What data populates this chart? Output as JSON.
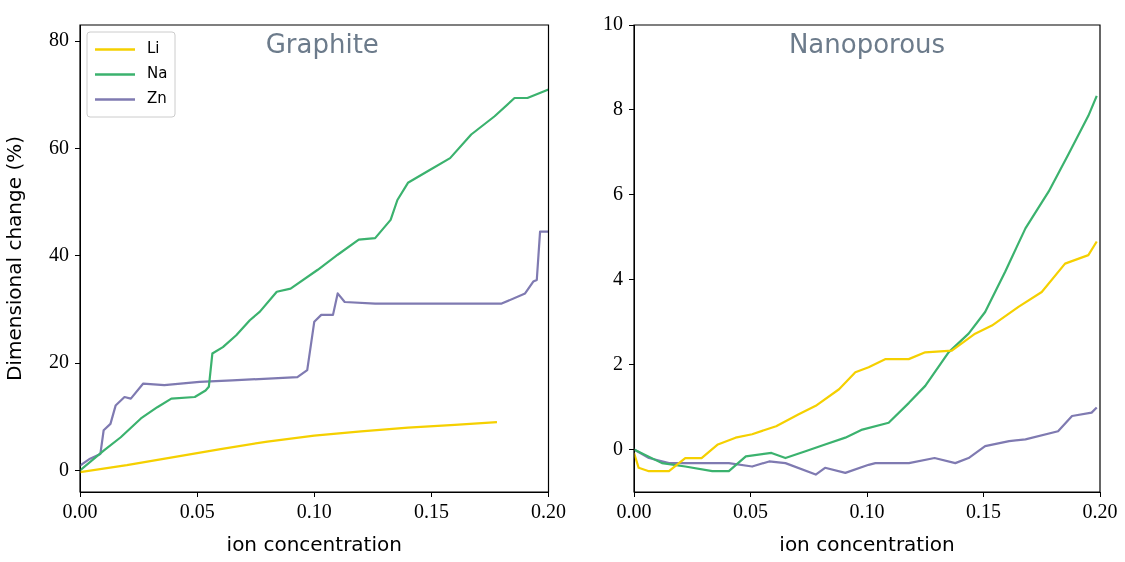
{
  "chart_data": [
    {
      "type": "line",
      "title": "Graphite",
      "xlabel": "ion concentration",
      "ylabel": "Dimensional change (%)",
      "legend": "top left",
      "xlim": [
        0,
        0.2
      ],
      "ylim": [
        -4,
        83
      ],
      "xticks": [
        {
          "value": 0,
          "label": "0.00"
        },
        {
          "value": 0.05,
          "label": "0.05"
        },
        {
          "value": 0.1,
          "label": "0.10"
        },
        {
          "value": 0.15,
          "label": "0.15"
        },
        {
          "value": 0.2,
          "label": "0.20"
        }
      ],
      "yticks": [
        0,
        20,
        40,
        60,
        80
      ],
      "series": [
        {
          "name": "Li",
          "color": "#f5d000",
          "x": [
            0,
            0.02,
            0.04,
            0.06,
            0.08,
            0.1,
            0.12,
            0.14,
            0.16,
            0.178
          ],
          "values": [
            -0.3,
            1,
            2.5,
            4,
            5.4,
            6.5,
            7.3,
            8,
            8.5,
            9
          ]
        },
        {
          "name": "Na",
          "color": "#3bb26e",
          "x": [
            0,
            0.0101,
            0.0174,
            0.026,
            0.033,
            0.039,
            0.049,
            0.0536,
            0.055,
            0.0565,
            0.061,
            0.0667,
            0.0725,
            0.0768,
            0.084,
            0.0899,
            0.1015,
            0.11,
            0.119,
            0.126,
            0.1326,
            0.1355,
            0.14,
            0.1493,
            0.158,
            0.167,
            0.177,
            0.1855,
            0.191,
            0.2
          ],
          "values": [
            0,
            3.7,
            6.2,
            9.7,
            11.8,
            13.4,
            13.7,
            14.9,
            15.6,
            21.8,
            23,
            25.2,
            28,
            29.6,
            33.3,
            33.9,
            37.4,
            40.2,
            43,
            43.3,
            46.7,
            50.4,
            53.6,
            56,
            58.2,
            62.6,
            66,
            69.4,
            69.4,
            71
          ]
        },
        {
          "name": "Zn",
          "color": "#7f7ab1",
          "x": [
            0,
            0.0043,
            0.0087,
            0.0101,
            0.013,
            0.0152,
            0.019,
            0.0217,
            0.027,
            0.036,
            0.051,
            0.065,
            0.0928,
            0.097,
            0.1,
            0.103,
            0.108,
            0.11,
            0.113,
            0.126,
            0.18,
            0.19,
            0.1935,
            0.195,
            0.1964,
            0.2
          ],
          "values": [
            0.9,
            2.2,
            3.1,
            7.5,
            8.7,
            12.1,
            13.7,
            13.4,
            16.2,
            15.9,
            16.5,
            16.8,
            17.4,
            18.7,
            27.7,
            29,
            29,
            33,
            31.4,
            31.1,
            31.1,
            33,
            35.2,
            35.5,
            44.5,
            44.5
          ]
        }
      ]
    },
    {
      "type": "line",
      "title": "Nanoporous",
      "xlabel": "ion concentration",
      "xlim": [
        0,
        0.2
      ],
      "ylim": [
        -1,
        10
      ],
      "xticks": [
        {
          "value": 0,
          "label": "0.00"
        },
        {
          "value": 0.05,
          "label": "0.05"
        },
        {
          "value": 0.1,
          "label": "0.10"
        },
        {
          "value": 0.15,
          "label": "0.15"
        },
        {
          "value": 0.2,
          "label": "0.20"
        }
      ],
      "yticks": [
        0,
        2,
        4,
        6,
        8,
        10
      ],
      "series": [
        {
          "color": "#f5d000",
          "x": [
            0,
            0.002,
            0.0064,
            0.015,
            0.022,
            0.029,
            0.036,
            0.0436,
            0.0507,
            0.061,
            0.0707,
            0.078,
            0.088,
            0.095,
            0.1007,
            0.108,
            0.1179,
            0.125,
            0.1364,
            0.1464,
            0.1536,
            0.165,
            0.175,
            0.185,
            0.195,
            0.1986
          ],
          "values": [
            -0.08,
            -0.43,
            -0.51,
            -0.51,
            -0.2,
            -0.2,
            0.12,
            0.28,
            0.36,
            0.55,
            0.83,
            1.03,
            1.42,
            1.82,
            1.94,
            2.13,
            2.13,
            2.29,
            2.33,
            2.73,
            2.92,
            3.36,
            3.71,
            4.38,
            4.58,
            4.9
          ]
        },
        {
          "color": "#3bb26e",
          "x": [
            0,
            0.012,
            0.022,
            0.0336,
            0.0407,
            0.048,
            0.059,
            0.065,
            0.0736,
            0.082,
            0.0907,
            0.098,
            0.1093,
            0.118,
            0.125,
            0.135,
            0.1436,
            0.1507,
            0.1593,
            0.168,
            0.178,
            0.1864,
            0.195,
            0.1986
          ],
          "values": [
            0,
            -0.32,
            -0.4,
            -0.51,
            -0.51,
            -0.16,
            -0.08,
            -0.2,
            -0.04,
            0.12,
            0.28,
            0.47,
            0.63,
            1.1,
            1.5,
            2.29,
            2.73,
            3.24,
            4.19,
            5.21,
            6.08,
            6.95,
            7.86,
            8.33
          ]
        },
        {
          "color": "#7f7ab1",
          "x": [
            0,
            0.0064,
            0.015,
            0.029,
            0.0407,
            0.0507,
            0.058,
            0.065,
            0.078,
            0.082,
            0.0907,
            0.1007,
            0.1036,
            0.118,
            0.129,
            0.1379,
            0.1436,
            0.1507,
            0.161,
            0.168,
            0.182,
            0.188,
            0.1964,
            0.1986
          ],
          "values": [
            0,
            -0.2,
            -0.32,
            -0.32,
            -0.32,
            -0.4,
            -0.28,
            -0.32,
            -0.59,
            -0.43,
            -0.55,
            -0.36,
            -0.32,
            -0.32,
            -0.2,
            -0.32,
            -0.2,
            0.08,
            0.2,
            0.24,
            0.43,
            0.79,
            0.87,
            0.99
          ]
        }
      ]
    }
  ]
}
